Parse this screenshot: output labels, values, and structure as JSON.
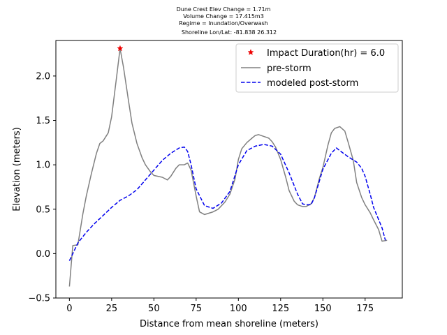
{
  "chart_data": {
    "type": "line",
    "title_lines": [
      "Dune Crest Elev Change = 1.71m",
      "Volume Change = 17.415m3",
      "Regime = Inundation/Overwash",
      "Shoreline Lon/Lat: -81.838 26.312"
    ],
    "xlabel": "Distance from mean shoreline (meters)",
    "ylabel": "Elevation (meters)",
    "xlim": [
      -8,
      197
    ],
    "ylim": [
      -0.5,
      2.4
    ],
    "xticks": [
      0,
      25,
      50,
      75,
      100,
      125,
      150,
      175
    ],
    "yticks": [
      -0.5,
      0.0,
      0.5,
      1.0,
      1.5,
      2.0
    ],
    "ytick_labels": [
      "−0.5",
      "0.0",
      "0.5",
      "1.0",
      "1.5",
      "2.0"
    ],
    "grid": false,
    "legend_position": "top-right",
    "series": [
      {
        "name": "pre-storm",
        "color": "#808080",
        "style": "solid",
        "x": [
          0,
          2,
          5,
          8,
          10,
          13,
          16,
          18,
          20,
          23,
          25,
          28,
          30,
          32,
          35,
          37,
          40,
          43,
          45,
          48,
          50,
          55,
          58,
          60,
          63,
          65,
          68,
          70,
          72,
          75,
          77,
          80,
          85,
          88,
          92,
          95,
          98,
          100,
          102,
          105,
          108,
          110,
          112,
          115,
          118,
          120,
          122,
          125,
          128,
          130,
          133,
          135,
          138,
          140,
          143,
          145,
          148,
          150,
          153,
          155,
          157,
          160,
          163,
          165,
          168,
          170,
          173,
          175,
          178,
          180,
          183,
          185,
          188
        ],
        "y": [
          -0.37,
          0.09,
          0.1,
          0.45,
          0.65,
          0.9,
          1.13,
          1.24,
          1.27,
          1.36,
          1.54,
          2.0,
          2.31,
          2.1,
          1.72,
          1.47,
          1.24,
          1.08,
          1.0,
          0.92,
          0.88,
          0.86,
          0.83,
          0.87,
          0.96,
          1.0,
          1.0,
          1.02,
          0.94,
          0.65,
          0.47,
          0.44,
          0.47,
          0.5,
          0.58,
          0.67,
          0.84,
          1.06,
          1.18,
          1.25,
          1.3,
          1.33,
          1.34,
          1.32,
          1.3,
          1.26,
          1.2,
          1.06,
          0.86,
          0.71,
          0.59,
          0.55,
          0.53,
          0.53,
          0.56,
          0.63,
          0.85,
          0.97,
          1.22,
          1.36,
          1.41,
          1.43,
          1.38,
          1.25,
          1.05,
          0.8,
          0.63,
          0.55,
          0.46,
          0.38,
          0.27,
          0.14,
          0.15
        ]
      },
      {
        "name": "modeled post-storm",
        "color": "#0000ee",
        "style": "dashed",
        "x": [
          0,
          5,
          10,
          15,
          20,
          25,
          30,
          35,
          40,
          45,
          50,
          55,
          60,
          65,
          68,
          70,
          72,
          75,
          80,
          85,
          90,
          95,
          100,
          105,
          110,
          115,
          120,
          125,
          130,
          135,
          138,
          140,
          143,
          145,
          148,
          150,
          155,
          158,
          160,
          165,
          170,
          173,
          175,
          178,
          180,
          185,
          187
        ],
        "y": [
          -0.08,
          0.12,
          0.24,
          0.34,
          0.43,
          0.52,
          0.6,
          0.65,
          0.72,
          0.83,
          0.94,
          1.05,
          1.13,
          1.19,
          1.2,
          1.15,
          1.0,
          0.73,
          0.54,
          0.51,
          0.57,
          0.7,
          1.0,
          1.16,
          1.21,
          1.23,
          1.21,
          1.12,
          0.91,
          0.67,
          0.56,
          0.55,
          0.55,
          0.63,
          0.82,
          0.95,
          1.13,
          1.19,
          1.16,
          1.09,
          1.03,
          0.96,
          0.87,
          0.67,
          0.52,
          0.29,
          0.15
        ]
      }
    ],
    "markers": [
      {
        "name": "Impact Duration(hr) = 6.0",
        "x": 30,
        "y": 2.31,
        "color": "#ee0000",
        "symbol": "star"
      }
    ]
  }
}
